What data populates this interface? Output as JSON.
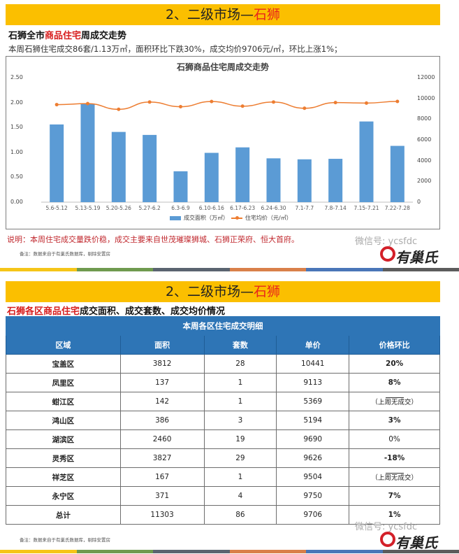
{
  "top": {
    "banner": {
      "prefix": "2、二级市场—",
      "city": "石狮"
    },
    "subtitle": {
      "part1": "石狮全市",
      "part2": "商品住宅",
      "part3": "周成交走势"
    },
    "summary": "本周石狮住宅成交86套/1.13万㎡，面积环比下跌30%，成交均价9706元/㎡，环比上涨1%；",
    "note": "说明：本周住宅成交量跌价稳，成交主要来自世茂璀璨狮城、石狮正荣府、恒大首府。",
    "footnote": "备注：数据来自于有巢氏数据库，剔除安置房"
  },
  "chart_data": {
    "type": "bar",
    "title": "石狮商品住宅周成交走势",
    "categories": [
      "5.6-5.12",
      "5.13-5.19",
      "5.20-5.26",
      "5.27-6.2",
      "6.3-6.9",
      "6.10-6.16",
      "6.17-6.23",
      "6.24-6.30",
      "7.1-7.7",
      "7.8-7.14",
      "7.15-7.21",
      "7.22-7.28"
    ],
    "series": [
      {
        "name": "成交面积（万㎡）",
        "type": "bar",
        "axis": "left",
        "color": "#5b9bd5",
        "values": [
          1.56,
          1.98,
          1.41,
          1.35,
          0.62,
          0.99,
          1.1,
          0.88,
          0.86,
          0.87,
          1.62,
          1.13
        ]
      },
      {
        "name": "住宅均价（元/㎡）",
        "type": "line",
        "axis": "right",
        "color": "#ed7d31",
        "values": [
          9400,
          9500,
          8950,
          9650,
          9200,
          9700,
          9250,
          9650,
          9050,
          9600,
          9550,
          9706
        ]
      }
    ],
    "left_axis": {
      "ticks": [
        "0.00",
        "0.50",
        "1.00",
        "1.50",
        "2.00",
        "2.50"
      ],
      "ylim": [
        0,
        2.5
      ]
    },
    "right_axis": {
      "ticks": [
        "0",
        "2000",
        "4000",
        "6000",
        "8000",
        "10000",
        "12000"
      ],
      "ylim": [
        0,
        12000
      ]
    },
    "legend": [
      "成交面积（万㎡）",
      "住宅均价（元/㎡）"
    ],
    "legend_position": "bottom",
    "grid": false
  },
  "bottom": {
    "banner": {
      "prefix": "2、二级市场—",
      "city": "石狮"
    },
    "subtitle": {
      "part1": "石狮各区商品住宅",
      "part2": "成交面积、成交套数、成交均价情况"
    },
    "table": {
      "caption": "本周各区住宅成交明细",
      "headers": [
        "区域",
        "面积",
        "套数",
        "单价",
        "价格环比"
      ],
      "rows": [
        {
          "name": "宝盖区",
          "area": "3812",
          "units": "28",
          "price": "10441",
          "change": "20%",
          "tone": "red"
        },
        {
          "name": "凤里区",
          "area": "137",
          "units": "1",
          "price": "9113",
          "change": "8%",
          "tone": "red"
        },
        {
          "name": "蚶江区",
          "area": "142",
          "units": "1",
          "price": "5369",
          "change": "（上周无成交）",
          "tone": "none"
        },
        {
          "name": "鸿山区",
          "area": "386",
          "units": "3",
          "price": "5194",
          "change": "3%",
          "tone": "red"
        },
        {
          "name": "湖滨区",
          "area": "2460",
          "units": "19",
          "price": "9690",
          "change": "0%",
          "tone": "plain"
        },
        {
          "name": "灵秀区",
          "area": "3827",
          "units": "29",
          "price": "9626",
          "change": "-18%",
          "tone": "green"
        },
        {
          "name": "祥芝区",
          "area": "167",
          "units": "1",
          "price": "9504",
          "change": "（上周无成交）",
          "tone": "none"
        },
        {
          "name": "永宁区",
          "area": "371",
          "units": "4",
          "price": "9750",
          "change": "7%",
          "tone": "red"
        },
        {
          "name": "总计",
          "area": "11303",
          "units": "86",
          "price": "9706",
          "change": "1%",
          "tone": "red"
        }
      ]
    },
    "footnote": "备注：数据来自于有巢氏数据库，剔除安置房"
  },
  "brand": {
    "wechat": "微信号: ycsfdc",
    "name": "有巢氏"
  },
  "colors": {
    "banner": "#fbbf00",
    "accent_red": "#e8251c",
    "bar": "#5b9bd5",
    "line": "#ed7d31",
    "table_header": "#2e75b6",
    "up": "#c00000",
    "down": "#00b050",
    "stripe": [
      "#f5c518",
      "#6f9a4f",
      "#5a6470",
      "#d9804a",
      "#4a76b8",
      "#5c5c5c"
    ]
  }
}
